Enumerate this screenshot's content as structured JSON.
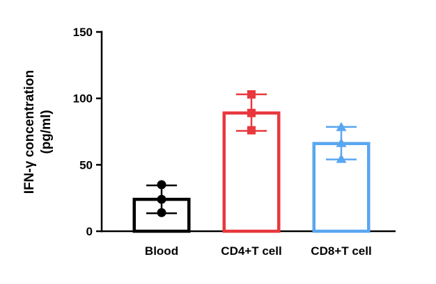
{
  "chart_data": {
    "type": "bar",
    "title": "",
    "xlabel": "",
    "ylabel_lines": [
      "IFN-γ concentration",
      "(pg/ml)"
    ],
    "ylim": [
      0,
      150
    ],
    "yticks": [
      0,
      50,
      100,
      150
    ],
    "categories": [
      "Blood",
      "CD4+T cell",
      "CD8+T cell"
    ],
    "values": [
      24,
      89,
      66
    ],
    "error": [
      {
        "low": 13.5,
        "high": 34.5
      },
      {
        "low": 75.5,
        "high": 103
      },
      {
        "low": 54,
        "high": 78.5
      }
    ],
    "points": [
      [
        35,
        24,
        14
      ],
      [
        103,
        89,
        76
      ],
      [
        78,
        66,
        54
      ]
    ],
    "markers": [
      "circle",
      "square",
      "triangle"
    ],
    "colors": [
      "#000000",
      "#e8383d",
      "#58a6f0"
    ],
    "bar_fill": "#ffffff",
    "grid": false,
    "legend": "none"
  }
}
